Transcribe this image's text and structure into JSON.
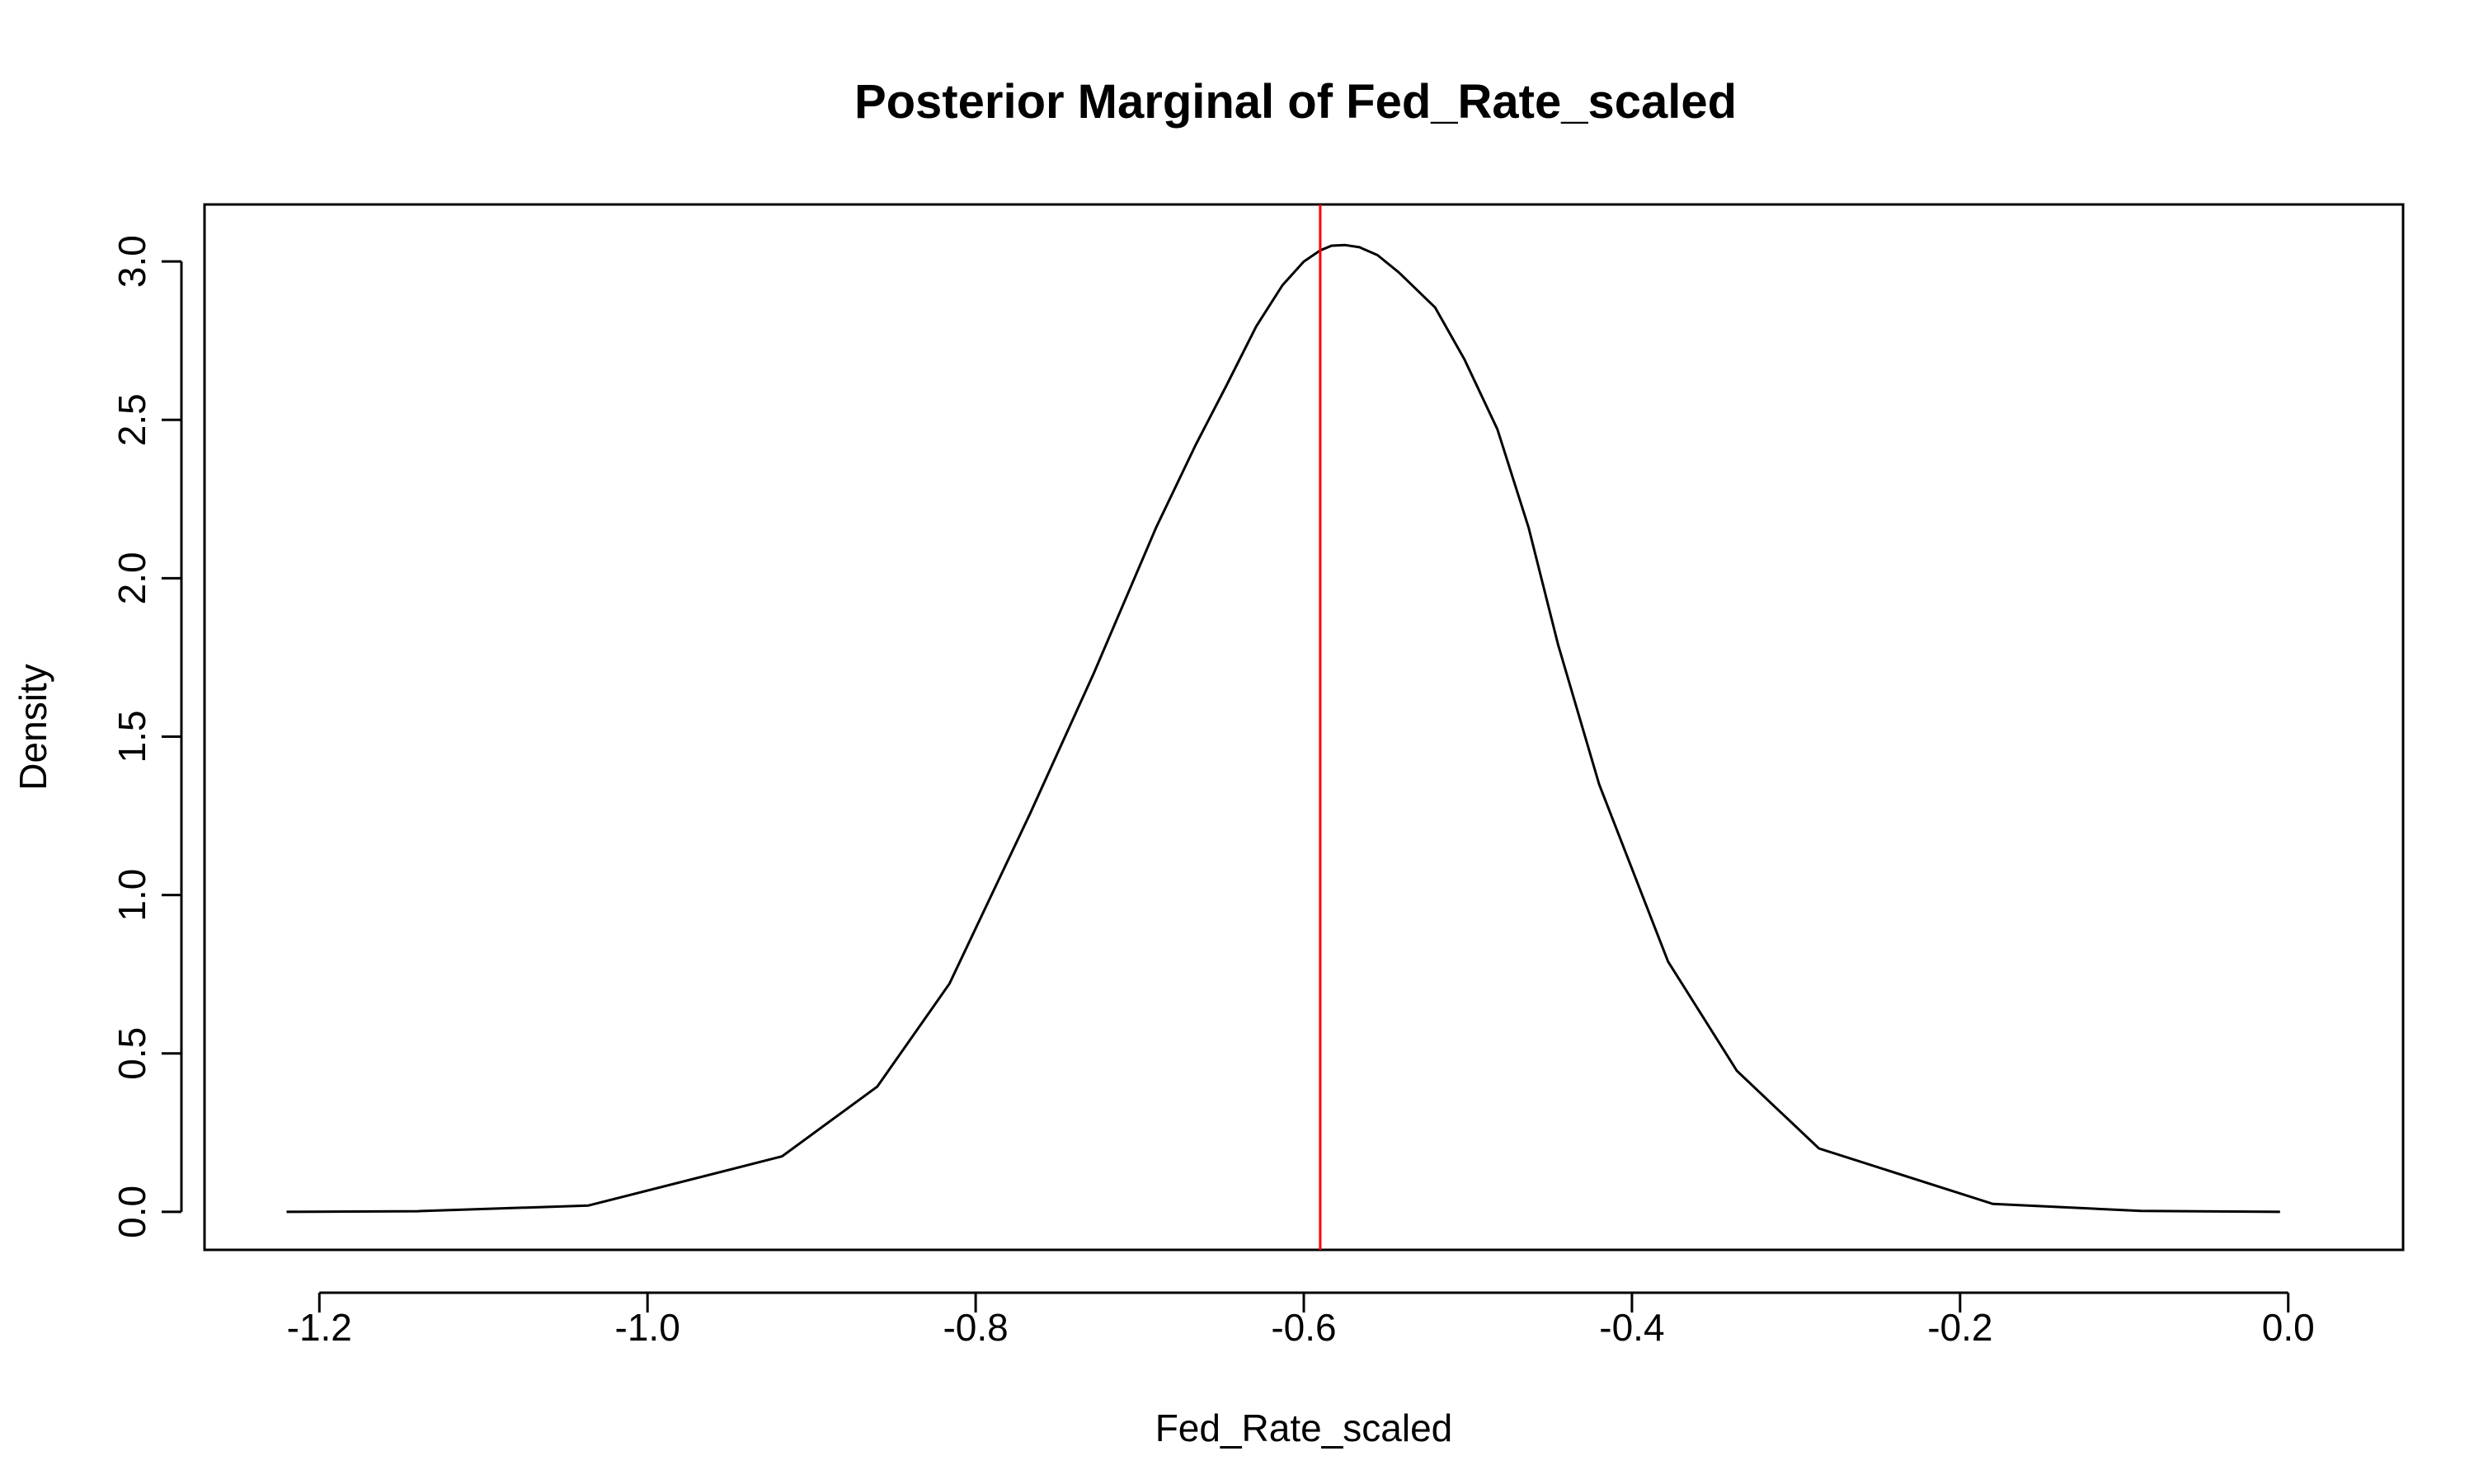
{
  "chart_data": {
    "type": "line",
    "title": "Posterior Marginal of Fed_Rate_scaled",
    "xlabel": "Fed_Rate_scaled",
    "ylabel": "Density",
    "xlim": [
      -1.27,
      0.07
    ],
    "ylim": [
      -0.12,
      3.18
    ],
    "x_ticks": [
      -1.2,
      -1.0,
      -0.8,
      -0.6,
      -0.4,
      -0.2,
      0.0
    ],
    "x_tick_labels": [
      "-1.2",
      "-1.0",
      "-0.8",
      "-0.6",
      "-0.4",
      "-0.2",
      "0.0"
    ],
    "y_ticks": [
      0.0,
      0.5,
      1.0,
      1.5,
      2.0,
      2.5,
      3.0
    ],
    "y_tick_labels": [
      "0.0",
      "0.5",
      "1.0",
      "1.5",
      "2.0",
      "2.5",
      "3.0"
    ],
    "grid": false,
    "legend": "none",
    "series": [
      {
        "color": "#000000",
        "x": [
          -1.22,
          -1.14,
          -1.036,
          -0.918,
          -0.86,
          -0.816,
          -0.767,
          -0.728,
          -0.69,
          -0.666,
          -0.647,
          -0.629,
          -0.613,
          -0.6,
          -0.59,
          -0.583,
          -0.575,
          -0.566,
          -0.555,
          -0.542,
          -0.52,
          -0.502,
          -0.482,
          -0.463,
          -0.445,
          -0.42,
          -0.378,
          -0.336,
          -0.286,
          -0.18,
          -0.09,
          -0.005
        ],
        "y": [
          0.0,
          0.002,
          0.02,
          0.175,
          0.395,
          0.72,
          1.255,
          1.7,
          2.16,
          2.42,
          2.61,
          2.795,
          2.925,
          3.0,
          3.035,
          3.05,
          3.052,
          3.045,
          3.02,
          2.965,
          2.855,
          2.69,
          2.47,
          2.16,
          1.79,
          1.35,
          0.79,
          0.445,
          0.2,
          0.025,
          0.003,
          0.0
        ]
      }
    ],
    "vline": {
      "x": -0.59,
      "color": "#ff0000"
    }
  }
}
